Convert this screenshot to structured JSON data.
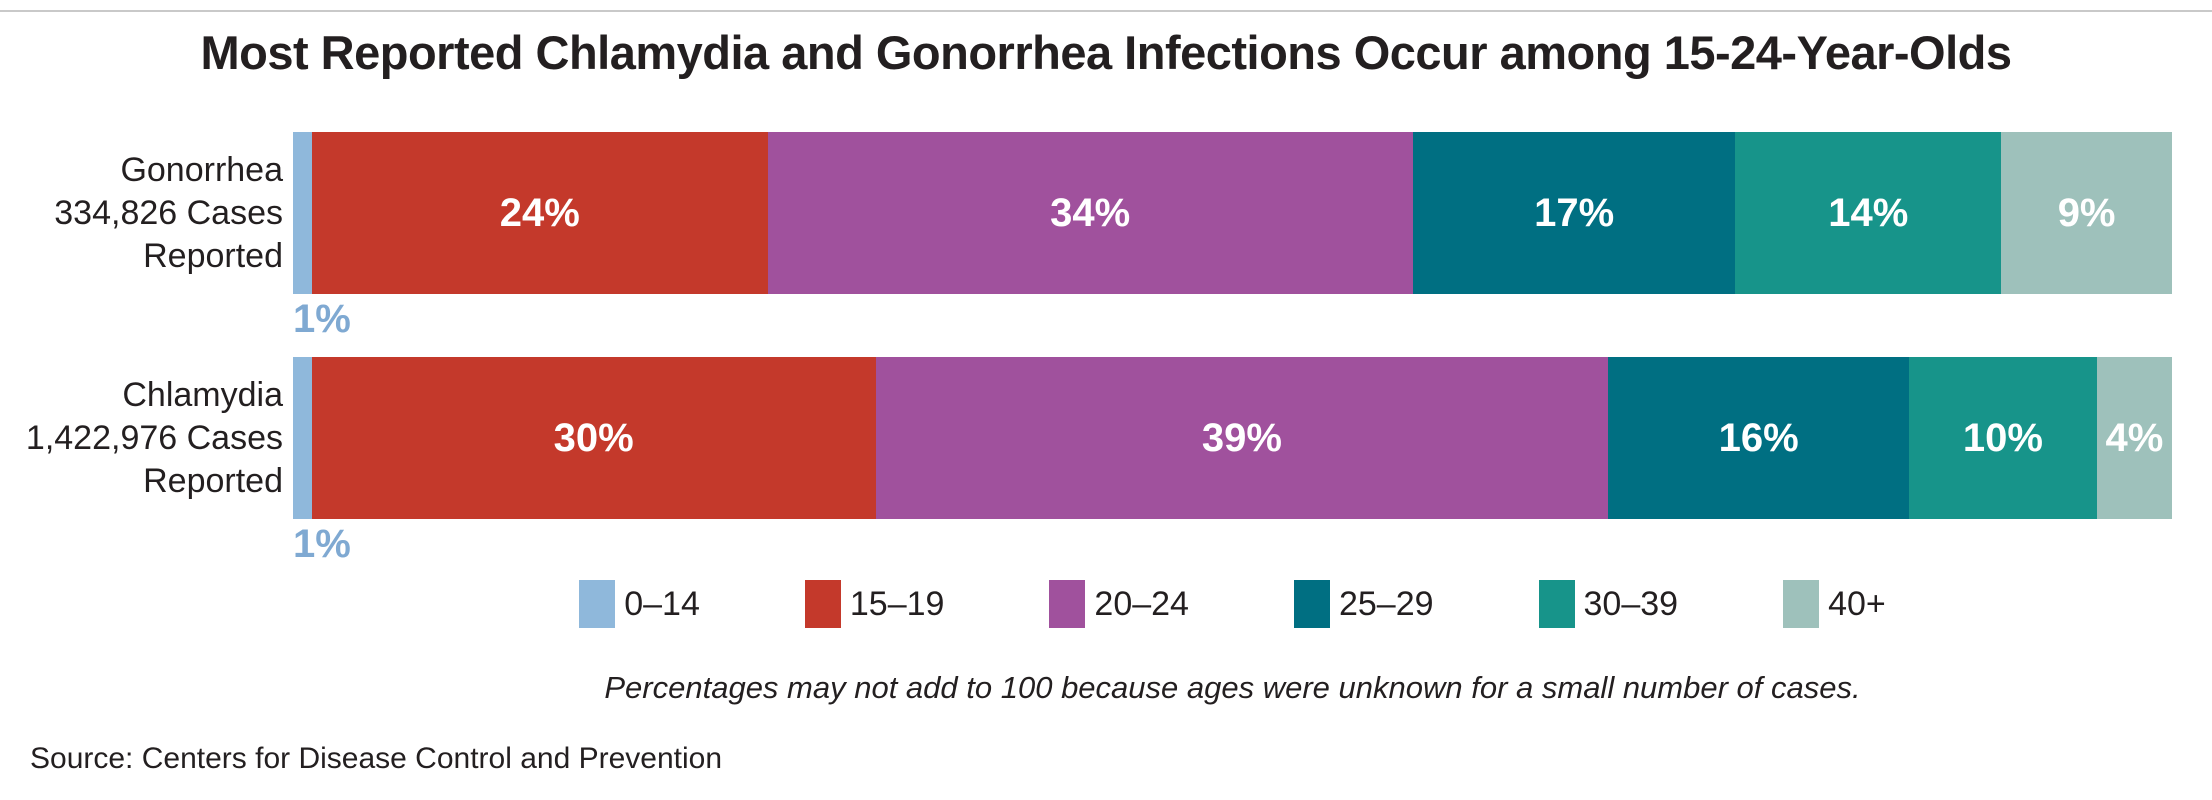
{
  "title": "Most Reported Chlamydia and Gonorrhea Infections Occur among 15-24-Year-Olds",
  "footnote": "Percentages may not add to 100 because ages were unknown for a small number of cases.",
  "source": "Source: Centers for Disease Control and Prevention",
  "chart_data": {
    "type": "bar",
    "variant": "horizontal-stacked",
    "unit": "percent",
    "legend_position": "bottom",
    "categories": [
      "0–14",
      "15–19",
      "20–24",
      "25–29",
      "30–39",
      "40+"
    ],
    "colors": [
      "#8FB8DB",
      "#C4392B",
      "#A0519D",
      "#006F82",
      "#17948A",
      "#9EC1BB"
    ],
    "outside_label_color": "#7FA9D2",
    "series": [
      {
        "name": "Gonorrhea",
        "label_lines": [
          "Gonorrhea",
          "334,826 Cases",
          "Reported"
        ],
        "total_cases": "334,826",
        "segments": [
          {
            "category": "0–14",
            "value": 1,
            "pct_label": "1%",
            "label_position": "below"
          },
          {
            "category": "15–19",
            "value": 24,
            "pct_label": "24%",
            "label_position": "inside"
          },
          {
            "category": "20–24",
            "value": 34,
            "pct_label": "34%",
            "label_position": "inside"
          },
          {
            "category": "25–29",
            "value": 17,
            "pct_label": "17%",
            "label_position": "inside"
          },
          {
            "category": "30–39",
            "value": 14,
            "pct_label": "14%",
            "label_position": "inside"
          },
          {
            "category": "40+",
            "value": 9,
            "pct_label": "9%",
            "label_position": "inside"
          }
        ]
      },
      {
        "name": "Chlamydia",
        "label_lines": [
          "Chlamydia",
          "1,422,976 Cases",
          "Reported"
        ],
        "total_cases": "1,422,976",
        "segments": [
          {
            "category": "0–14",
            "value": 1,
            "pct_label": "1%",
            "label_position": "below"
          },
          {
            "category": "15–19",
            "value": 30,
            "pct_label": "30%",
            "label_position": "inside"
          },
          {
            "category": "20–24",
            "value": 39,
            "pct_label": "39%",
            "label_position": "inside"
          },
          {
            "category": "25–29",
            "value": 16,
            "pct_label": "16%",
            "label_position": "inside"
          },
          {
            "category": "30–39",
            "value": 10,
            "pct_label": "10%",
            "label_position": "inside"
          },
          {
            "category": "40+",
            "value": 4,
            "pct_label": "4%",
            "label_position": "inside"
          }
        ]
      }
    ]
  }
}
